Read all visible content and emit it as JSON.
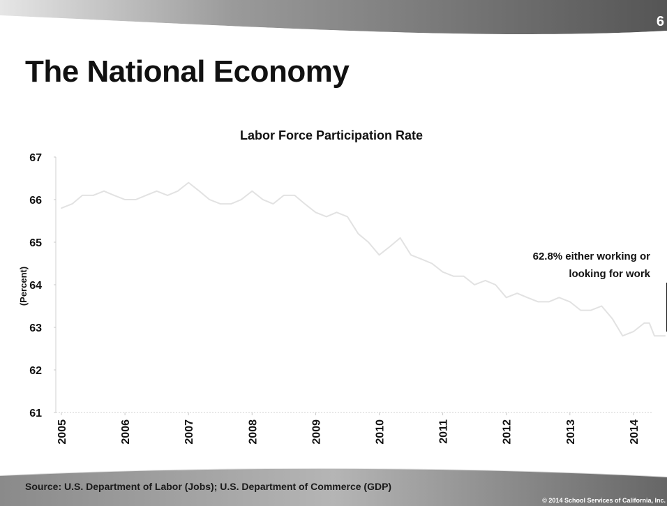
{
  "slide": {
    "number": "6",
    "title": "The National Economy",
    "source": "Source: U.S. Department of Labor (Jobs); U.S. Department of Commerce (GDP)",
    "copyright": "© 2014 School Services of California, Inc."
  },
  "colors": {
    "band": "#7f7f7f",
    "line": "#e2e2e2",
    "text": "#111111"
  },
  "chart_data": {
    "type": "line",
    "title": "Labor Force Participation Rate",
    "ylabel": "(Percent)",
    "xlabel": "",
    "ylim": [
      61,
      67
    ],
    "yticks": [
      "61",
      "62",
      "63",
      "64",
      "65",
      "66",
      "67"
    ],
    "xticks": [
      "2005",
      "2006",
      "2007",
      "2008",
      "2009",
      "2010",
      "2011",
      "2012",
      "2013",
      "2014"
    ],
    "xlim": [
      2005,
      2014.6
    ],
    "grid": false,
    "series": [
      {
        "values": [
          [
            2005.0,
            65.8
          ],
          [
            2005.17,
            65.9
          ],
          [
            2005.33,
            66.1
          ],
          [
            2005.5,
            66.1
          ],
          [
            2005.67,
            66.2
          ],
          [
            2005.83,
            66.1
          ],
          [
            2006.0,
            66.0
          ],
          [
            2006.17,
            66.0
          ],
          [
            2006.33,
            66.1
          ],
          [
            2006.5,
            66.2
          ],
          [
            2006.67,
            66.1
          ],
          [
            2006.83,
            66.2
          ],
          [
            2007.0,
            66.4
          ],
          [
            2007.17,
            66.2
          ],
          [
            2007.33,
            66.0
          ],
          [
            2007.5,
            65.9
          ],
          [
            2007.67,
            65.9
          ],
          [
            2007.83,
            66.0
          ],
          [
            2008.0,
            66.2
          ],
          [
            2008.17,
            66.0
          ],
          [
            2008.33,
            65.9
          ],
          [
            2008.5,
            66.1
          ],
          [
            2008.67,
            66.1
          ],
          [
            2008.83,
            65.9
          ],
          [
            2009.0,
            65.7
          ],
          [
            2009.17,
            65.6
          ],
          [
            2009.33,
            65.7
          ],
          [
            2009.5,
            65.6
          ],
          [
            2009.67,
            65.2
          ],
          [
            2009.83,
            65.0
          ],
          [
            2010.0,
            64.7
          ],
          [
            2010.17,
            64.9
          ],
          [
            2010.33,
            65.1
          ],
          [
            2010.5,
            64.7
          ],
          [
            2010.67,
            64.6
          ],
          [
            2010.83,
            64.5
          ],
          [
            2011.0,
            64.3
          ],
          [
            2011.17,
            64.2
          ],
          [
            2011.33,
            64.2
          ],
          [
            2011.5,
            64.0
          ],
          [
            2011.67,
            64.1
          ],
          [
            2011.83,
            64.0
          ],
          [
            2012.0,
            63.7
          ],
          [
            2012.17,
            63.8
          ],
          [
            2012.33,
            63.7
          ],
          [
            2012.5,
            63.6
          ],
          [
            2012.67,
            63.6
          ],
          [
            2012.83,
            63.7
          ],
          [
            2013.0,
            63.6
          ],
          [
            2013.17,
            63.4
          ],
          [
            2013.33,
            63.4
          ],
          [
            2013.5,
            63.5
          ],
          [
            2013.67,
            63.2
          ],
          [
            2013.83,
            62.8
          ],
          [
            2014.0,
            62.9
          ],
          [
            2014.17,
            63.1
          ],
          [
            2014.25,
            63.1
          ],
          [
            2014.33,
            62.8
          ],
          [
            2014.5,
            62.8
          ]
        ]
      }
    ],
    "annotation": {
      "line1": "62.8% either working or",
      "line2": "looking for work",
      "x": 2014.5,
      "y": 62.8
    }
  }
}
